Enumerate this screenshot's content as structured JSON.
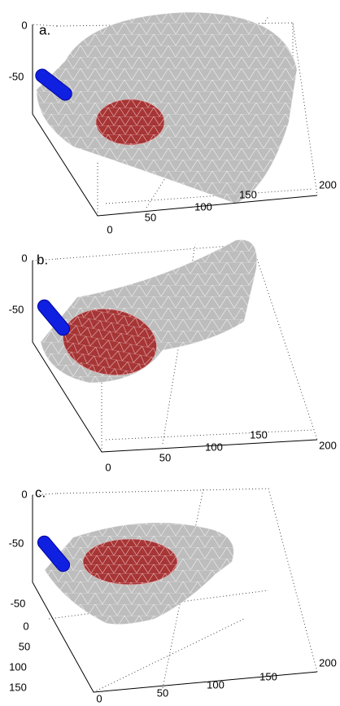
{
  "panels": [
    {
      "label": "a.",
      "z_ticks": [
        "0",
        "-50"
      ],
      "y_ticks": [],
      "x_ticks": [
        "0",
        "50",
        "100",
        "150",
        "200"
      ]
    },
    {
      "label": "b.",
      "z_ticks": [
        "0",
        "-50"
      ],
      "y_ticks": [],
      "x_ticks": [
        "0",
        "50",
        "100",
        "150",
        "200"
      ]
    },
    {
      "label": "c.",
      "z_ticks": [
        "0",
        "-50"
      ],
      "y_ticks": [
        "-50",
        "0",
        "50",
        "100",
        "150"
      ],
      "x_ticks": [
        "0",
        "50",
        "100",
        "150",
        "200"
      ]
    }
  ]
}
